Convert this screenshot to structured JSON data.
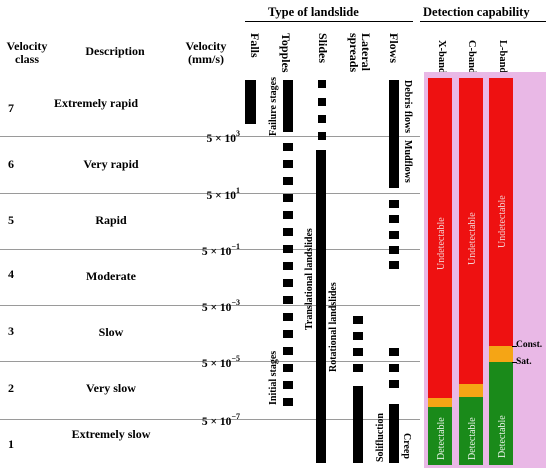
{
  "headers": {
    "velocity_class": "Velocity class",
    "description": "Description",
    "velocity": "Velocity (mm/s)",
    "type_of_landslide": "Type of landslide",
    "detection_capability": "Detection capability"
  },
  "landslide_types": [
    "Falls",
    "Topples",
    "Slides",
    "Lateral spreads",
    "Flows"
  ],
  "bands": [
    "X-band",
    "C-band",
    "L-band"
  ],
  "classes": [
    {
      "num": "7",
      "desc": "Extremely rapid"
    },
    {
      "num": "6",
      "desc": "Very rapid"
    },
    {
      "num": "5",
      "desc": "Rapid"
    },
    {
      "num": "4",
      "desc": "Moderate"
    },
    {
      "num": "3",
      "desc": "Slow"
    },
    {
      "num": "2",
      "desc": "Very slow"
    },
    {
      "num": "1",
      "desc": "Extremely  slow"
    }
  ],
  "velocity_thresholds": [
    {
      "base": "5 × 10",
      "exp": "3"
    },
    {
      "base": "5 × 10",
      "exp": "1"
    },
    {
      "base": "5 × 10",
      "exp": "−1"
    },
    {
      "base": "5 × 10",
      "exp": "−3"
    },
    {
      "base": "5 × 10",
      "exp": "−5"
    },
    {
      "base": "5 × 10",
      "exp": "−7"
    }
  ],
  "annotations": {
    "failure_stages": "Failure stages",
    "initial_stages": "Initial stages",
    "translational": "Translational landslides",
    "rotational": "Rotational landslides",
    "debris_flows": "Debris flows",
    "mudflows": "Mudflows",
    "solifluction": "Solifluction",
    "creep": "Creep"
  },
  "detection": {
    "undetectable": "Undetectable",
    "detectable": "Detectable",
    "const": "Const.",
    "sat": "Sat."
  },
  "colors": {
    "undetectable": "#ee1111",
    "transition": "#f5a515",
    "detectable": "#1a8a1a",
    "highlight": "#e9b8e6"
  }
}
